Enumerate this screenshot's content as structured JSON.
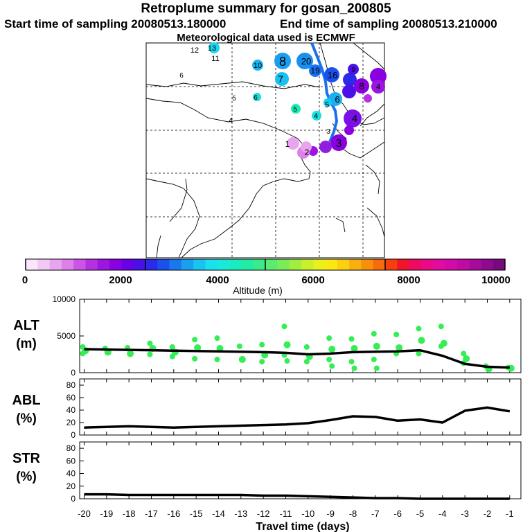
{
  "header": {
    "title": "Retroplume summary for gosan_200805",
    "start_label": "Start time of sampling 20080513.180000",
    "end_label": "End time of sampling 20080513.210000",
    "met_label": "Meteorological data used is ECMWF"
  },
  "colorbar": {
    "label": "Altitude (m)",
    "ticks": [
      "0",
      "2000",
      "4000",
      "6000",
      "8000",
      "10000"
    ],
    "colors": [
      "#fbe6fb",
      "#f3c8f5",
      "#e9a4ef",
      "#dd80ea",
      "#cc55e6",
      "#b52fe3",
      "#9b16e0",
      "#8a00e0",
      "#6a00e6",
      "#4a10e8",
      "#2a2ae8",
      "#1a50ec",
      "#1a78ee",
      "#1aa0f0",
      "#1ac4f2",
      "#1ae0f0",
      "#1aeadc",
      "#1aecc0",
      "#22eca4",
      "#3aec88",
      "#5aec70",
      "#7aec58",
      "#a0ee40",
      "#c8ee2c",
      "#eaf01c",
      "#fae814",
      "#fad010",
      "#f8b00e",
      "#f8900c",
      "#f86a0c",
      "#f83e0c",
      "#f0142c",
      "#ee0a62",
      "#ea0a88",
      "#e20aa0",
      "#d40aa8",
      "#c00aa4",
      "#a80a9c",
      "#900a90",
      "#780a80"
    ]
  },
  "map_labels": [
    {
      "text": "12",
      "color": "#1ad8ee"
    },
    {
      "text": "13",
      "color": "#1ad8ee"
    },
    {
      "text": "11",
      "color": "#1ad8ee"
    },
    {
      "text": "10",
      "color": "#1ab4f0"
    },
    {
      "text": "8",
      "color": "#1a9ef0"
    },
    {
      "text": "20",
      "color": "#1a90ee"
    },
    {
      "text": "19",
      "color": "#1a70ee"
    },
    {
      "text": "16",
      "color": "#1a50ec"
    },
    {
      "text": "7",
      "color": "#1ac0f0"
    },
    {
      "text": "6",
      "color": "#c0ee30"
    },
    {
      "text": "6",
      "color": "#1adcd8"
    },
    {
      "text": "5",
      "color": "#f0e818"
    },
    {
      "text": "5",
      "color": "#1aecb0"
    },
    {
      "text": "4",
      "color": "#1ae0e0"
    },
    {
      "text": "6",
      "color": "#1ab0f0"
    },
    {
      "text": "5",
      "color": "#1ac8f0"
    },
    {
      "text": "4",
      "color": "#7a10e6"
    },
    {
      "text": "3",
      "color": "#8a00e0"
    },
    {
      "text": "1",
      "color": "#e0a0ee"
    },
    {
      "text": "2",
      "color": "#d080ea"
    },
    {
      "text": "3",
      "color": "#9020e0"
    },
    {
      "text": "9",
      "color": "#6a00e6"
    },
    {
      "text": "8",
      "color": "#6a00e6"
    },
    {
      "text": "4",
      "color": "#9b16e0"
    },
    {
      "text": "4",
      "color": "#1aecc0"
    }
  ],
  "chart_data": [
    {
      "type": "line",
      "panel": "ALT",
      "ylabel": "ALT\n(m)",
      "ylim": [
        0,
        10000
      ],
      "yticks": [
        "0",
        "5000",
        "10000"
      ],
      "xlim": [
        -20.2,
        -0.5
      ],
      "x": [
        -20,
        -19,
        -18,
        -17,
        -16,
        -15,
        -14,
        -13,
        -12,
        -11,
        -10,
        -9,
        -8,
        -7,
        -6,
        -5,
        -4,
        -3,
        -2,
        -1
      ],
      "values": [
        3200,
        3150,
        3100,
        3050,
        3000,
        2950,
        2900,
        2850,
        2800,
        2700,
        2500,
        2600,
        2800,
        2850,
        2900,
        3050,
        2300,
        1200,
        800,
        700
      ],
      "scatter_color": "#33ee55",
      "scatter": [
        {
          "x": -20,
          "y": [
            3500,
            3000,
            2600
          ]
        },
        {
          "x": -19,
          "y": [
            3300,
            2800
          ]
        },
        {
          "x": -18,
          "y": [
            3400,
            2600
          ]
        },
        {
          "x": -17,
          "y": [
            4000,
            3300,
            2500
          ]
        },
        {
          "x": -16,
          "y": [
            3500,
            2800,
            2200
          ]
        },
        {
          "x": -15,
          "y": [
            4500,
            3400,
            1900
          ]
        },
        {
          "x": -14,
          "y": [
            4700,
            3300,
            1800
          ]
        },
        {
          "x": -13,
          "y": [
            3600,
            1800
          ]
        },
        {
          "x": -12,
          "y": [
            3800,
            2400,
            1500
          ]
        },
        {
          "x": -11,
          "y": [
            6300,
            3800,
            2400,
            1600
          ]
        },
        {
          "x": -10,
          "y": [
            3500,
            2200,
            1500
          ]
        },
        {
          "x": -9,
          "y": [
            4700,
            3200,
            1800,
            900
          ]
        },
        {
          "x": -8,
          "y": [
            4600,
            3300,
            1500,
            600
          ]
        },
        {
          "x": -7,
          "y": [
            5300,
            3600,
            1800,
            600
          ]
        },
        {
          "x": -6,
          "y": [
            5200,
            3400,
            2600
          ]
        },
        {
          "x": -5,
          "y": [
            6000,
            4400,
            2600
          ]
        },
        {
          "x": -4,
          "y": [
            6300,
            4000,
            3600
          ]
        },
        {
          "x": -3,
          "y": [
            2600,
            1900,
            1300
          ]
        },
        {
          "x": -2,
          "y": [
            900,
            500
          ]
        },
        {
          "x": -1,
          "y": [
            700,
            600
          ]
        }
      ]
    },
    {
      "type": "line",
      "panel": "ABL",
      "ylabel": "ABL\n(%)",
      "ylim": [
        0,
        90
      ],
      "yticks": [
        "0",
        "20",
        "40",
        "60",
        "80"
      ],
      "xlim": [
        -20.2,
        -0.5
      ],
      "x": [
        -20,
        -19,
        -18,
        -17,
        -16,
        -15,
        -14,
        -13,
        -12,
        -11,
        -10,
        -9,
        -8,
        -7,
        -6,
        -5,
        -4,
        -3,
        -2,
        -1
      ],
      "values": [
        12,
        13,
        14,
        13,
        12,
        13,
        14,
        15,
        16,
        17,
        19,
        24,
        30,
        29,
        23,
        25,
        20,
        39,
        44,
        38
      ]
    },
    {
      "type": "line",
      "panel": "STR",
      "ylabel": "STR\n(%)",
      "ylim": [
        0,
        90
      ],
      "yticks": [
        "0",
        "20",
        "40",
        "60",
        "80"
      ],
      "xlim": [
        -20.2,
        -0.5
      ],
      "xlabel": "Travel time (days)",
      "xticks": [
        "-20",
        "-19",
        "-18",
        "-17",
        "-16",
        "-15",
        "-14",
        "-13",
        "-12",
        "-11",
        "-10",
        "-9",
        "-8",
        "-7",
        "-6",
        "-5",
        "-4",
        "-3",
        "-2",
        "-1"
      ],
      "x": [
        -20,
        -19,
        -18,
        -17,
        -16,
        -15,
        -14,
        -13,
        -12,
        -11,
        -10,
        -9,
        -8,
        -7,
        -6,
        -5,
        -4,
        -3,
        -2,
        -1
      ],
      "values": [
        7,
        7,
        6,
        6,
        6,
        6,
        6,
        6,
        5,
        5,
        4,
        3,
        2,
        1,
        1,
        0,
        0,
        0,
        0,
        0
      ]
    }
  ]
}
